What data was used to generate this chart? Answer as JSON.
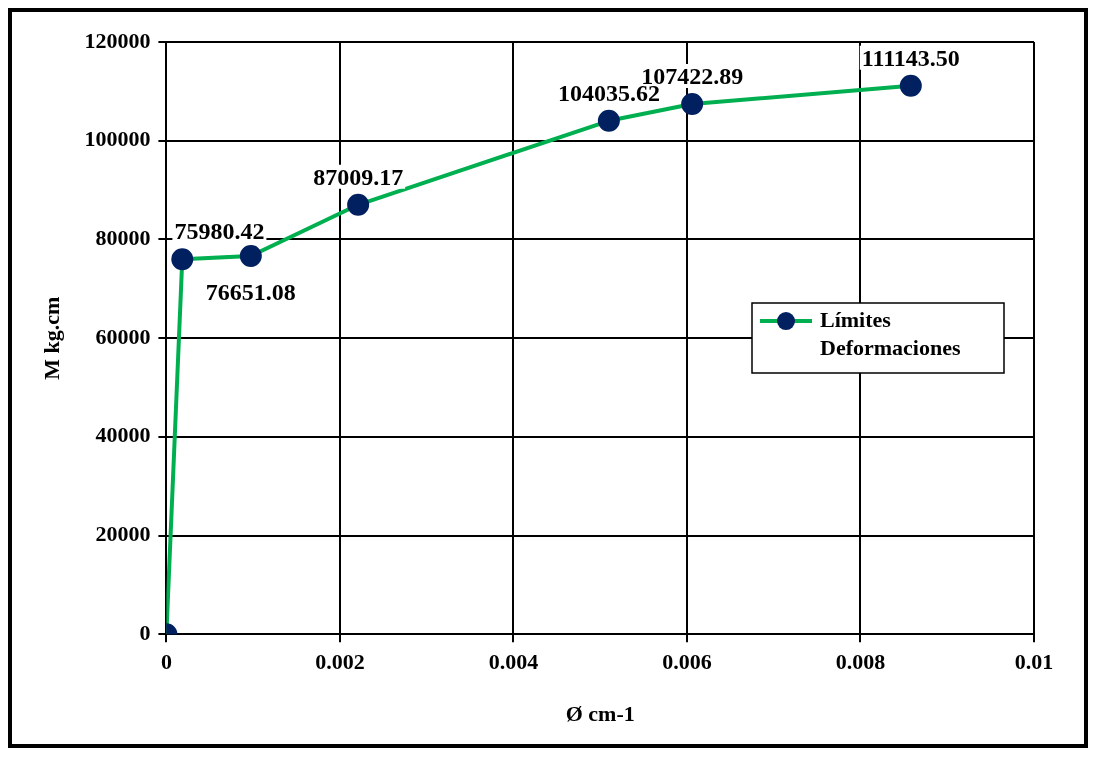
{
  "chart_data": {
    "type": "line",
    "xlabel": "Ø cm-1",
    "ylabel": "M kg.cm",
    "x": [
      0,
      0.000183,
      0.000973,
      0.00221,
      0.0051,
      0.00606,
      0.00858
    ],
    "series": [
      {
        "name": "Límites Deformaciones",
        "color": "#00b050",
        "values": [
          0,
          75980.42,
          76651.08,
          87009.17,
          104035.62,
          107422.89,
          111143.5
        ],
        "value_labels": [
          null,
          "75980.42",
          "76651.08",
          "87009.17",
          "104035.62",
          "107422.89",
          "111143.50"
        ]
      }
    ],
    "marker": "circle",
    "xlim": [
      0,
      0.01
    ],
    "xticks": [
      0,
      0.002,
      0.004,
      0.006,
      0.008,
      0.01
    ],
    "ylim": [
      0,
      120000
    ],
    "yticks": [
      0,
      20000,
      40000,
      60000,
      80000,
      100000,
      120000
    ],
    "grid": true,
    "legend": "right"
  }
}
